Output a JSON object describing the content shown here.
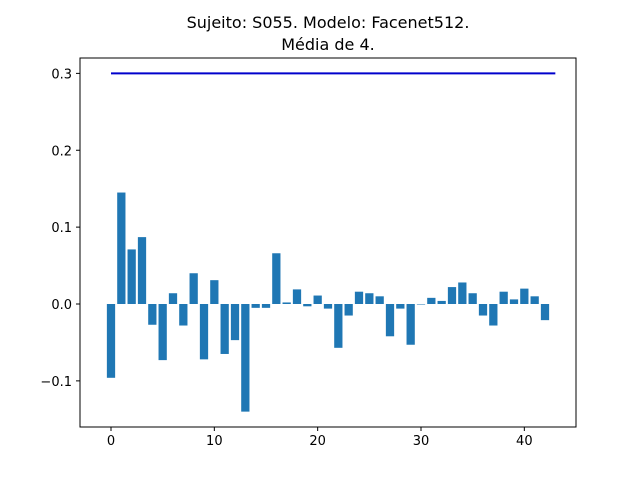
{
  "chart_data": {
    "type": "bar",
    "title_lines": [
      "Sujeito: S055. Modelo: Facenet512.",
      "Média de 4."
    ],
    "xlabel": "",
    "ylabel": "",
    "xlim": [
      -3,
      45
    ],
    "ylim": [
      -0.16,
      0.32
    ],
    "x_ticks": [
      0,
      10,
      20,
      30,
      40
    ],
    "y_ticks": [
      -0.1,
      0.0,
      0.1,
      0.2,
      0.3
    ],
    "y_tick_labels": [
      "−0.1",
      "0.0",
      "0.1",
      "0.2",
      "0.3"
    ],
    "grid": false,
    "bar_color": "#1f77b4",
    "line_color": "#0000cc",
    "x": [
      0,
      1,
      2,
      3,
      4,
      5,
      6,
      7,
      8,
      9,
      10,
      11,
      12,
      13,
      14,
      15,
      16,
      17,
      18,
      19,
      20,
      21,
      22,
      23,
      24,
      25,
      26,
      27,
      28,
      29,
      30,
      31,
      32,
      33,
      34,
      35,
      36,
      37,
      38,
      39,
      40,
      41,
      42
    ],
    "values": [
      -0.096,
      0.145,
      0.071,
      0.087,
      -0.027,
      -0.073,
      0.014,
      -0.028,
      0.04,
      -0.072,
      0.031,
      -0.065,
      -0.047,
      -0.14,
      -0.005,
      -0.005,
      0.066,
      0.002,
      0.019,
      -0.003,
      0.011,
      -0.006,
      -0.057,
      -0.015,
      0.016,
      0.014,
      0.01,
      -0.042,
      -0.006,
      -0.053,
      0.0,
      0.008,
      0.004,
      0.022,
      0.028,
      0.014,
      -0.015,
      -0.028,
      0.016,
      0.006,
      0.02,
      0.01,
      -0.021
    ],
    "threshold_line": {
      "x": [
        0,
        43
      ],
      "y": [
        0.3,
        0.3
      ]
    }
  }
}
